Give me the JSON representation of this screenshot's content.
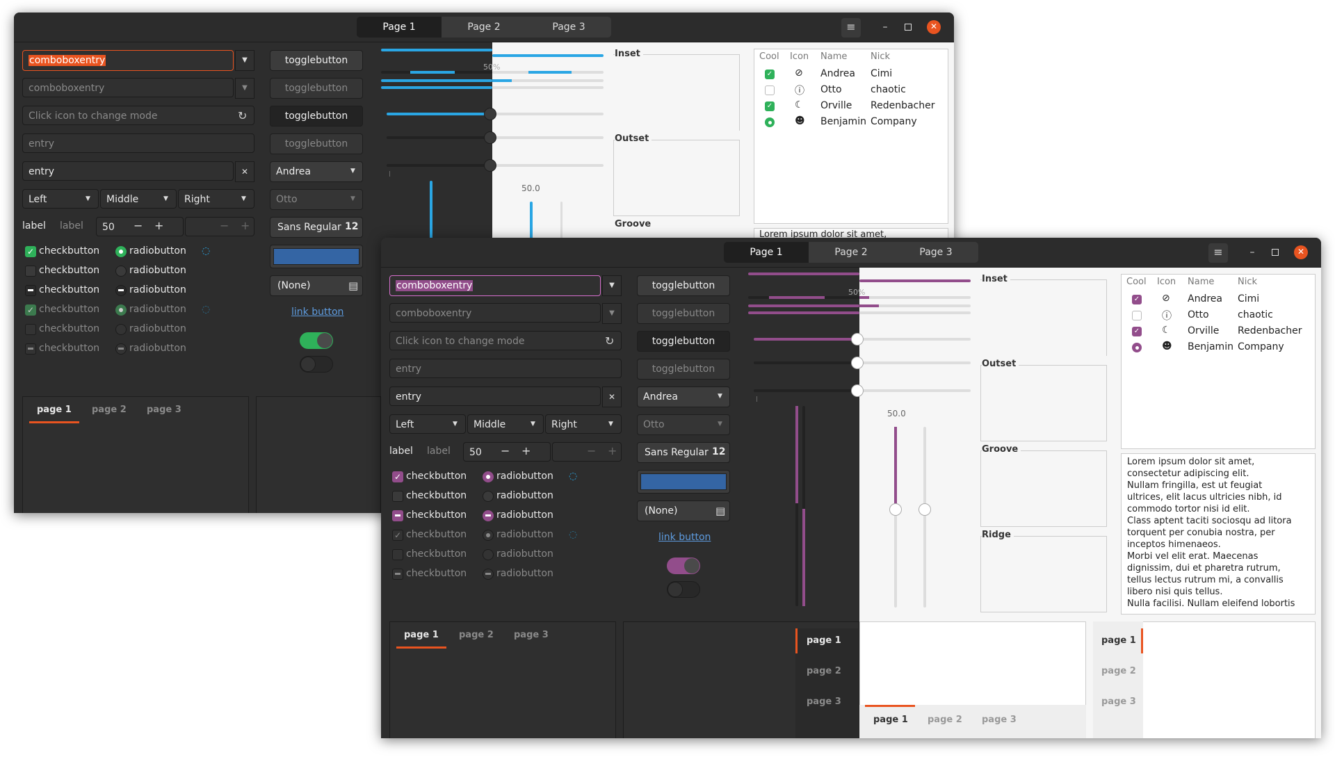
{
  "colors": {
    "accent1": "#e95420",
    "accent2": "#a05fa4",
    "green": "#2fb15a",
    "blue": "#2aa6e4",
    "purple": "#924d8b"
  },
  "titlebar": {
    "tabs": [
      "Page 1",
      "Page 2",
      "Page 3"
    ]
  },
  "entries": {
    "combo_selected": "comboboxentry",
    "combo_disabled": "comboboxentry",
    "icon_entry_placeholder": "Click icon to change mode",
    "entry_placeholder": "entry",
    "entry_value": "entry"
  },
  "toggles": {
    "label": "togglebutton"
  },
  "combos": {
    "andrea": "Andrea",
    "otto": "Otto",
    "left": "Left",
    "middle": "Middle",
    "right": "Right"
  },
  "spin": {
    "label1": "label",
    "label2": "label",
    "value": "50"
  },
  "font_button": {
    "name": "Sans Regular",
    "size": "12"
  },
  "file_button": {
    "label": "(None)"
  },
  "link_button": {
    "label": "link button"
  },
  "checks": {
    "label": "checkbutton"
  },
  "radios": {
    "label": "radiobutton"
  },
  "progress": {
    "label": "50%",
    "value": 0.5
  },
  "scale": {
    "value_label": "50.0",
    "value": 50
  },
  "frames": {
    "inset": "Inset",
    "outset": "Outset",
    "groove": "Groove",
    "ridge": "Ridge"
  },
  "tree": {
    "headers": [
      "Cool",
      "Icon",
      "Name",
      "Nick"
    ],
    "rows": [
      {
        "name": "Andrea",
        "nick": "Cimi",
        "icon": "check-circle-icon"
      },
      {
        "name": "Otto",
        "nick": "chaotic",
        "icon": "exclamation-circle-icon"
      },
      {
        "name": "Orville",
        "nick": "Redenbacher",
        "icon": "weather-icon"
      },
      {
        "name": "Benjamin",
        "nick": "Company",
        "icon": "face-icon"
      }
    ]
  },
  "textview": {
    "first_line": "Lorem ipsum dolor sit amet,",
    "lines": [
      "Lorem ipsum dolor sit amet,",
      "consectetur adipiscing elit.",
      "Nullam fringilla, est ut feugiat",
      "ultrices, elit lacus ultricies nibh, id",
      "commodo tortor nisi id elit.",
      "Class aptent taciti sociosqu ad litora",
      "torquent per conubia nostra, per",
      "inceptos himenaeos.",
      "Morbi vel elit erat. Maecenas",
      "dignissim, dui et pharetra rutrum,",
      "tellus lectus rutrum mi, a convallis",
      "libero nisi quis tellus.",
      "Nulla facilisi. Nullam eleifend lobortis"
    ]
  },
  "notebook": {
    "tabs": [
      "page 1",
      "page 2",
      "page 3"
    ]
  }
}
